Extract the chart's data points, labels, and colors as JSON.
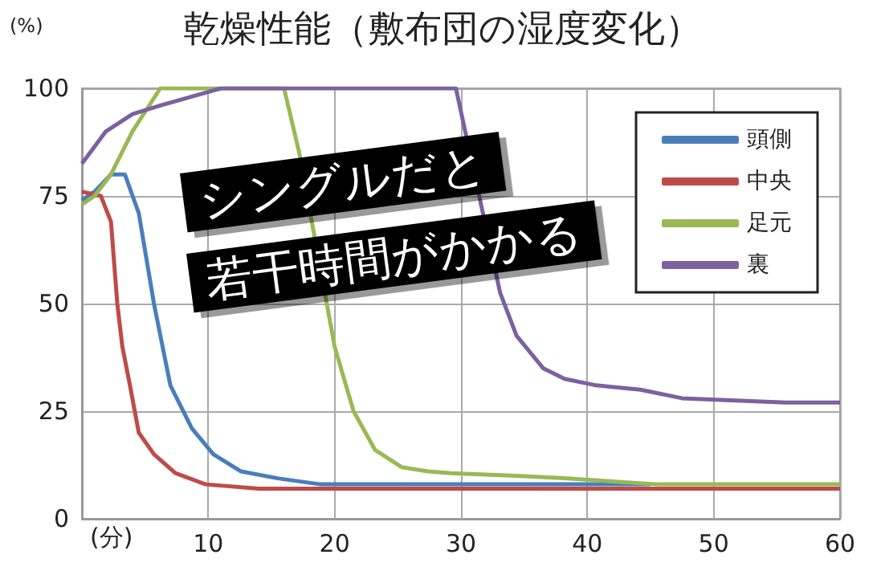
{
  "chart_data": {
    "type": "line",
    "title": "乾燥性能（敷布団の湿度変化）",
    "ylabel": "(%)",
    "xlabel": "(分)",
    "annotations": [
      "シングルだと",
      "若干時間がかかる"
    ],
    "xlim": [
      0,
      60
    ],
    "xticks": [
      {
        "value": 0,
        "label": null
      },
      10,
      20,
      30,
      40,
      50,
      60
    ],
    "ylim": [
      0,
      100
    ],
    "yticks": [
      0,
      25,
      50,
      75,
      100
    ],
    "grid": true,
    "legend": "top right",
    "marker": "none",
    "line_style": "solid",
    "series": [
      {
        "name": "頭側",
        "color": "#4a7ebb",
        "x": [
          0,
          1,
          2.3,
          3.4,
          4.5,
          5.7,
          7,
          8.7,
          10.4,
          12.6,
          15.5,
          18.9,
          45
        ],
        "values": [
          74,
          76,
          80,
          80,
          71,
          50,
          31,
          21,
          15,
          11,
          9.4,
          8,
          8
        ]
      },
      {
        "name": "中央",
        "color": "#be4b48",
        "x": [
          0,
          1.5,
          2.3,
          2.8,
          3.2,
          3.8,
          4.5,
          5.7,
          7.4,
          9.8,
          14,
          60
        ],
        "values": [
          76,
          75,
          69,
          50,
          40,
          31,
          20,
          15,
          10.6,
          8,
          7,
          7
        ]
      },
      {
        "name": "足元",
        "color": "#98b954",
        "x": [
          0,
          1,
          2.3,
          4,
          6.2,
          16,
          17.2,
          20,
          21.5,
          23.2,
          25.3,
          27.4,
          29.2,
          34.4,
          38.2,
          45.6,
          60
        ],
        "values": [
          73,
          75,
          80,
          90,
          100,
          100,
          85,
          40,
          25,
          16,
          12,
          11,
          10.6,
          10,
          9.4,
          8,
          8
        ]
      },
      {
        "name": "裏",
        "color": "#7d60a0",
        "x": [
          0,
          1.9,
          4,
          6.2,
          9.8,
          11,
          29.6,
          33.1,
          34.4,
          36.5,
          38.2,
          40.7,
          44.2,
          47.5,
          55.7,
          60
        ],
        "values": [
          82.5,
          90,
          94,
          96,
          99,
          100,
          100,
          52.5,
          42.5,
          35,
          32.5,
          31,
          30,
          28,
          27,
          27
        ]
      }
    ]
  }
}
